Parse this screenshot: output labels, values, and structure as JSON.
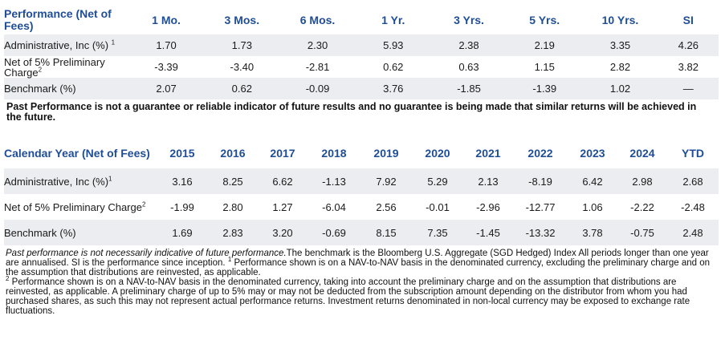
{
  "performance": {
    "header": [
      "Performance (Net of Fees)",
      "1 Mo.",
      "3 Mos.",
      "6 Mos.",
      "1 Yr.",
      "3 Yrs.",
      "5 Yrs.",
      "10 Yrs.",
      "SI"
    ],
    "rows": [
      {
        "label": "Administrative, Inc (%)",
        "sup": "1",
        "values": [
          "1.70",
          "1.73",
          "2.30",
          "5.93",
          "2.38",
          "2.19",
          "3.35",
          "4.26"
        ]
      },
      {
        "label": "Net of 5% Preliminary Charge",
        "sup": "2",
        "values": [
          "-3.39",
          "-3.40",
          "-2.81",
          "0.62",
          "0.63",
          "1.15",
          "2.82",
          "3.82"
        ]
      },
      {
        "label": "Benchmark (%)",
        "sup": "",
        "values": [
          "2.07",
          "0.62",
          "-0.09",
          "3.76",
          "-1.85",
          "-1.39",
          "1.02",
          "—"
        ]
      }
    ]
  },
  "disclaimer": "Past Performance is not a guarantee or reliable indicator of future results and no guarantee is being made that similar returns will be achieved in the future.",
  "calendar": {
    "header": [
      "Calendar Year (Net of Fees)",
      "2015",
      "2016",
      "2017",
      "2018",
      "2019",
      "2020",
      "2021",
      "2022",
      "2023",
      "2024",
      "YTD"
    ],
    "rows": [
      {
        "label": "Administrative, Inc (%)",
        "sup": "1",
        "values": [
          "3.16",
          "8.25",
          "6.62",
          "-1.13",
          "7.92",
          "5.29",
          "2.13",
          "-8.19",
          "6.42",
          "2.98",
          "2.68"
        ]
      },
      {
        "label": "Net of 5% Preliminary Charge",
        "sup": "2",
        "values": [
          "-1.99",
          "2.80",
          "1.27",
          "-6.04",
          "2.56",
          "-0.01",
          "-2.96",
          "-12.77",
          "1.06",
          "-2.22",
          "-2.48"
        ]
      },
      {
        "label": "Benchmark (%)",
        "sup": "",
        "values": [
          "1.69",
          "2.83",
          "3.20",
          "-0.69",
          "8.15",
          "7.35",
          "-1.45",
          "-13.32",
          "3.78",
          "-0.75",
          "2.48"
        ]
      }
    ]
  },
  "footnote": {
    "italic": "Past performance is not necessarily indicative of future performance.",
    "text1": "The benchmark is the Bloomberg U.S. Aggregate (SGD Hedged) Index All periods longer than one year are annualised. SI is the performance since inception. ",
    "sup1": "1",
    "text2": " Performance shown is on a NAV-to-NAV basis in the denominated currency, excluding the preliminary charge and on the assumption that distributions are reinvested, as applicable.",
    "sup2": "2",
    "text3": "  Performance shown is on a NAV-to-NAV basis in the denominated currency, taking into account the preliminary charge and on the assumption that distributions are reinvested, as applicable. A preliminary charge of up to 5% may or may not be deducted from the subscription amount depending on the distributor from whom you had purchased shares, as such this may not represent actual performance returns. Investment returns denominated in non-local currency may be exposed to exchange rate fluctuations."
  }
}
